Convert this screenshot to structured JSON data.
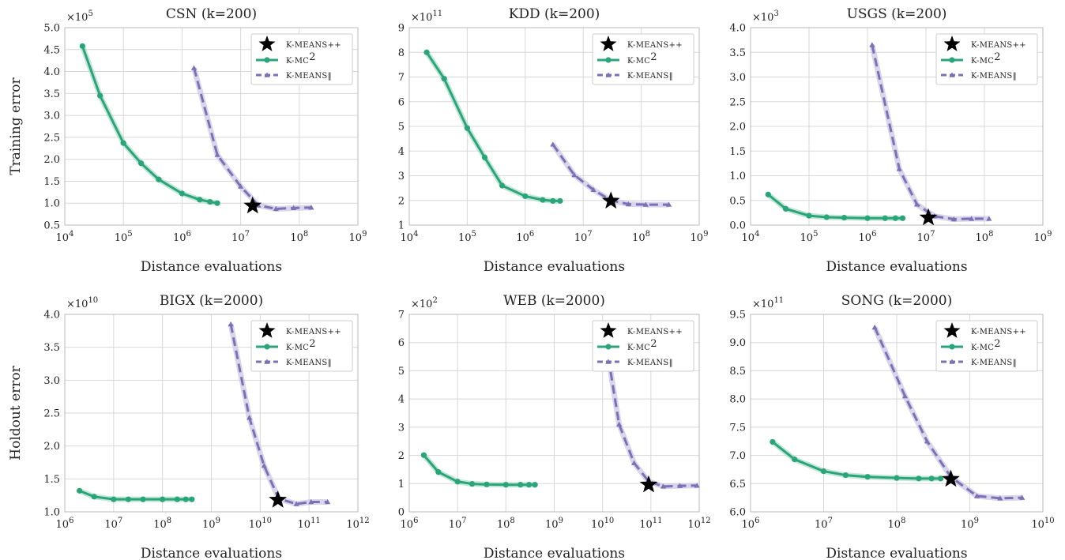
{
  "figure": {
    "xlabel": "Distance evaluations",
    "row_ylabels": [
      "Training error",
      "Holdout error"
    ],
    "colors": {
      "kmc2": "#2aa57a",
      "kmc2_band": "#a9dcc7",
      "kmeans_par": "#7d70b4",
      "kmeans_par_band": "#cfcbe6",
      "star": "#000000",
      "grid": "#d8d8d8",
      "frame": "#b9b9b9"
    },
    "legend_labels": {
      "kmeanspp": "K-MEANS++",
      "kmc2_base": "K-MC",
      "kmc2_sup": "2",
      "kmeans_par": "K-MEANS‖"
    }
  },
  "chart_data": [
    {
      "type": "line",
      "title": "CSN (k=200)",
      "xlabel": "Distance evaluations",
      "ylabel": "Training error",
      "xscale": "log",
      "xlim": [
        10000.0,
        1000000000.0
      ],
      "xticks_exp": [
        4,
        5,
        6,
        7,
        8,
        9
      ],
      "ylim": [
        0.5,
        5.0
      ],
      "yticks": [
        "0.5",
        "1.0",
        "1.5",
        "2.0",
        "2.5",
        "3.0",
        "3.5",
        "4.0",
        "4.5",
        "5.0"
      ],
      "y_multiplier": {
        "base": "×10",
        "exp": "5"
      },
      "grid": true,
      "legend": "top-right",
      "series": [
        {
          "name": "K-MC2",
          "marker": "circle",
          "x": [
            20000.0,
            40000.0,
            100000.0,
            200000.0,
            400000.0,
            1000000.0,
            2000000.0,
            3000000.0,
            4000000.0
          ],
          "y": [
            4.58,
            3.45,
            2.37,
            1.91,
            1.54,
            1.22,
            1.08,
            1.03,
            1.0
          ]
        },
        {
          "name": "K-MEANS‖",
          "marker": "triangle",
          "x": [
            1600000.0,
            4000000.0,
            10000000.0,
            20000000.0,
            40000000.0,
            80000000.0,
            160000000.0
          ],
          "y": [
            4.08,
            2.1,
            1.38,
            0.95,
            0.87,
            0.89,
            0.9
          ]
        },
        {
          "name": "K-MEANS++",
          "marker": "star",
          "x": [
            16000000.0
          ],
          "y": [
            0.94
          ]
        }
      ]
    },
    {
      "type": "line",
      "title": "KDD (k=200)",
      "xlabel": "Distance evaluations",
      "ylabel": "",
      "xscale": "log",
      "xlim": [
        10000.0,
        1000000000.0
      ],
      "xticks_exp": [
        4,
        5,
        6,
        7,
        8,
        9
      ],
      "ylim": [
        1,
        9
      ],
      "yticks": [
        "1",
        "2",
        "3",
        "4",
        "5",
        "6",
        "7",
        "8",
        "9"
      ],
      "y_multiplier": {
        "base": "×10",
        "exp": "11"
      },
      "grid": true,
      "legend": "top-right",
      "series": [
        {
          "name": "K-MC2",
          "marker": "circle",
          "x": [
            20000.0,
            40000.0,
            100000.0,
            200000.0,
            400000.0,
            1000000.0,
            2000000.0,
            3000000.0,
            4000000.0
          ],
          "y": [
            8.0,
            6.93,
            4.93,
            3.74,
            2.6,
            2.17,
            2.02,
            1.98,
            1.98
          ]
        },
        {
          "name": "K-MEANS‖",
          "marker": "triangle",
          "x": [
            3000000.0,
            7000000.0,
            15000000.0,
            30000000.0,
            60000000.0,
            120000000.0,
            300000000.0
          ],
          "y": [
            4.27,
            3.03,
            2.43,
            2.0,
            1.85,
            1.83,
            1.83
          ]
        },
        {
          "name": "K-MEANS++",
          "marker": "star",
          "x": [
            30000000.0
          ],
          "y": [
            1.98
          ]
        }
      ]
    },
    {
      "type": "line",
      "title": "USGS (k=200)",
      "xlabel": "Distance evaluations",
      "ylabel": "",
      "xscale": "log",
      "xlim": [
        10000.0,
        1000000000.0
      ],
      "xticks_exp": [
        4,
        5,
        6,
        7,
        8,
        9
      ],
      "ylim": [
        0.0,
        4.0
      ],
      "yticks": [
        "0.0",
        "0.5",
        "1.0",
        "1.5",
        "2.0",
        "2.5",
        "3.0",
        "3.5",
        "4.0"
      ],
      "y_multiplier": {
        "base": "×10",
        "exp": "3"
      },
      "grid": true,
      "legend": "top-right",
      "series": [
        {
          "name": "K-MC2",
          "marker": "circle",
          "x": [
            20000.0,
            40000.0,
            100000.0,
            200000.0,
            400000.0,
            1000000.0,
            2000000.0,
            3000000.0,
            4000000.0
          ],
          "y": [
            0.62,
            0.33,
            0.19,
            0.16,
            0.15,
            0.14,
            0.14,
            0.14,
            0.14
          ]
        },
        {
          "name": "K-MEANS‖",
          "marker": "triangle",
          "x": [
            1200000.0,
            3500000.0,
            7000000.0,
            14000000.0,
            30000000.0,
            60000000.0,
            120000000.0
          ],
          "y": [
            3.65,
            1.14,
            0.42,
            0.18,
            0.12,
            0.13,
            0.13
          ]
        },
        {
          "name": "K-MEANS++",
          "marker": "star",
          "x": [
            11000000.0
          ],
          "y": [
            0.15
          ]
        }
      ]
    },
    {
      "type": "line",
      "title": "BIGX (k=2000)",
      "xlabel": "Distance evaluations",
      "ylabel": "Holdout error",
      "xscale": "log",
      "xlim": [
        1000000.0,
        1000000000000.0
      ],
      "xticks_exp": [
        6,
        7,
        8,
        9,
        10,
        11,
        12
      ],
      "ylim": [
        1.0,
        4.0
      ],
      "yticks": [
        "1.0",
        "1.5",
        "2.0",
        "2.5",
        "3.0",
        "3.5",
        "4.0"
      ],
      "y_multiplier": {
        "base": "×10",
        "exp": "10"
      },
      "grid": true,
      "legend": "top-right",
      "series": [
        {
          "name": "K-MC2",
          "marker": "circle",
          "x": [
            2000000.0,
            4000000.0,
            10000000.0,
            20000000.0,
            40000000.0,
            100000000.0,
            200000000.0,
            300000000.0,
            400000000.0
          ],
          "y": [
            1.32,
            1.23,
            1.19,
            1.19,
            1.19,
            1.19,
            1.19,
            1.19,
            1.19
          ]
        },
        {
          "name": "K-MEANS‖",
          "marker": "triangle",
          "x": [
            2500000000.0,
            6000000000.0,
            12000000000.0,
            24000000000.0,
            55000000000.0,
            110000000000.0,
            240000000000.0
          ],
          "y": [
            3.85,
            2.43,
            1.7,
            1.2,
            1.12,
            1.15,
            1.15
          ]
        },
        {
          "name": "K-MEANS++",
          "marker": "star",
          "x": [
            23000000000.0
          ],
          "y": [
            1.18
          ]
        }
      ]
    },
    {
      "type": "line",
      "title": "WEB (k=2000)",
      "xlabel": "Distance evaluations",
      "ylabel": "",
      "xscale": "log",
      "xlim": [
        1000000.0,
        1000000000000.0
      ],
      "xticks_exp": [
        6,
        7,
        8,
        9,
        10,
        11,
        12
      ],
      "ylim": [
        0,
        7
      ],
      "yticks": [
        "0",
        "1",
        "2",
        "3",
        "4",
        "5",
        "6",
        "7"
      ],
      "y_multiplier": {
        "base": "×10",
        "exp": "2"
      },
      "grid": true,
      "legend": "top-right",
      "series": [
        {
          "name": "K-MC2",
          "marker": "circle",
          "x": [
            2000000.0,
            4000000.0,
            10000000.0,
            20000000.0,
            40000000.0,
            100000000.0,
            200000000.0,
            300000000.0,
            400000000.0
          ],
          "y": [
            2.01,
            1.41,
            1.07,
            0.99,
            0.97,
            0.96,
            0.96,
            0.96,
            0.96
          ]
        },
        {
          "name": "K-MEANS‖",
          "marker": "triangle",
          "x": [
            12000000000.0,
            22000000000.0,
            45000000000.0,
            90000000000.0,
            180000000000.0,
            400000000000.0,
            900000000000.0
          ],
          "y": [
            5.9,
            3.1,
            1.73,
            1.08,
            0.9,
            0.92,
            0.93
          ]
        },
        {
          "name": "K-MEANS++",
          "marker": "star",
          "x": [
            90000000000.0
          ],
          "y": [
            0.96
          ]
        }
      ]
    },
    {
      "type": "line",
      "title": "SONG (k=2000)",
      "xlabel": "Distance evaluations",
      "ylabel": "",
      "xscale": "log",
      "xlim": [
        1000000.0,
        10000000000.0
      ],
      "xticks_exp": [
        6,
        7,
        8,
        9,
        10
      ],
      "ylim": [
        6.0,
        9.5
      ],
      "yticks": [
        "6.0",
        "6.5",
        "7.0",
        "7.5",
        "8.0",
        "8.5",
        "9.0",
        "9.5"
      ],
      "y_multiplier": {
        "base": "×10",
        "exp": "11"
      },
      "grid": true,
      "legend": "top-right",
      "series": [
        {
          "name": "K-MC2",
          "marker": "circle",
          "x": [
            2000000.0,
            4000000.0,
            10000000.0,
            20000000.0,
            40000000.0,
            100000000.0,
            200000000.0,
            300000000.0,
            400000000.0
          ],
          "y": [
            7.24,
            6.93,
            6.72,
            6.65,
            6.62,
            6.6,
            6.59,
            6.59,
            6.59
          ]
        },
        {
          "name": "K-MEANS‖",
          "marker": "triangle",
          "x": [
            50000000.0,
            130000000.0,
            260000000.0,
            550000000.0,
            1250000000.0,
            2600000000.0,
            5200000000.0
          ],
          "y": [
            9.27,
            8.05,
            7.25,
            6.62,
            6.28,
            6.24,
            6.25
          ]
        },
        {
          "name": "K-MEANS++",
          "marker": "star",
          "x": [
            550000000.0
          ],
          "y": [
            6.58
          ]
        }
      ]
    }
  ]
}
